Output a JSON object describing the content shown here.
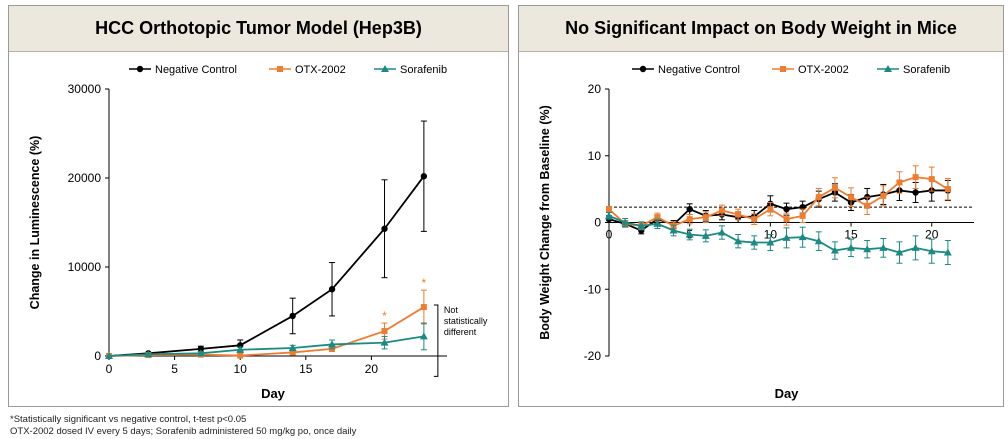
{
  "charts": [
    {
      "title": "HCC Orthotopic Tumor Model (Hep3B)",
      "xlabel": "Day",
      "ylabel": "Change in Luminescence (%)",
      "annotation": {
        "lines": [
          "Not",
          "statistically",
          "different"
        ]
      },
      "star": "*"
    },
    {
      "title": "No Significant Impact on Body Weight in Mice",
      "xlabel": "Day",
      "ylabel": "Body Weight Change from Baseline (%)"
    }
  ],
  "legend": [
    "Negative Control",
    "OTX-2002",
    "Sorafenib"
  ],
  "colors": {
    "negative": "#000000",
    "otx": "#ed7d31",
    "sorafenib": "#1b8a83",
    "header_bg": "#ece8dd"
  },
  "chart_data": [
    {
      "type": "line",
      "title": "HCC Orthotopic Tumor Model (Hep3B)",
      "xlabel": "Day",
      "ylabel": "Change in Luminescence (%)",
      "xlim": [
        0,
        25
      ],
      "ylim": [
        0,
        30000
      ],
      "xticks": [
        0,
        5,
        10,
        15,
        20
      ],
      "yticks": [
        0,
        10000,
        20000,
        30000
      ],
      "legend_position": "top",
      "series": [
        {
          "name": "Negative Control",
          "color": "#000000",
          "marker": "circle",
          "x": [
            0,
            3,
            7,
            10,
            14,
            17,
            21,
            24
          ],
          "values": [
            0,
            300,
            800,
            1200,
            4500,
            7500,
            14300,
            20200
          ],
          "errors": [
            0,
            100,
            300,
            600,
            2000,
            3000,
            5500,
            6200
          ]
        },
        {
          "name": "OTX-2002",
          "color": "#ed7d31",
          "marker": "square",
          "x": [
            0,
            3,
            7,
            10,
            14,
            17,
            21,
            24
          ],
          "values": [
            0,
            100,
            150,
            50,
            400,
            800,
            2800,
            5500
          ],
          "errors": [
            0,
            50,
            80,
            50,
            200,
            300,
            900,
            1900
          ],
          "significant": [
            false,
            false,
            false,
            false,
            false,
            false,
            true,
            true
          ]
        },
        {
          "name": "Sorafenib",
          "color": "#1b8a83",
          "marker": "triangle",
          "x": [
            0,
            3,
            7,
            10,
            14,
            17,
            21,
            24
          ],
          "values": [
            0,
            200,
            300,
            700,
            900,
            1300,
            1500,
            2200
          ],
          "errors": [
            0,
            100,
            200,
            300,
            300,
            500,
            700,
            1500
          ]
        }
      ]
    },
    {
      "type": "line",
      "title": "No Significant Impact on Body Weight in Mice",
      "xlabel": "Day",
      "ylabel": "Body Weight Change from Baseline (%)",
      "xlim": [
        0,
        22
      ],
      "ylim": [
        -20,
        20
      ],
      "xticks": [
        0,
        5,
        10,
        15,
        20
      ],
      "yticks": [
        -20,
        -10,
        0,
        10,
        20
      ],
      "reference_line": 2.3,
      "legend_position": "top",
      "series": [
        {
          "name": "Negative Control",
          "color": "#000000",
          "marker": "circle",
          "x": [
            0,
            1,
            2,
            3,
            4,
            5,
            6,
            7,
            8,
            9,
            10,
            11,
            12,
            13,
            14,
            15,
            16,
            17,
            18,
            19,
            20,
            21
          ],
          "values": [
            0.5,
            -0.2,
            -1.2,
            0.5,
            -0.3,
            2.0,
            1.0,
            1.2,
            0.8,
            0.9,
            2.8,
            2.0,
            2.3,
            3.5,
            4.5,
            3.0,
            3.8,
            4.2,
            4.8,
            4.5,
            4.8,
            4.8
          ],
          "errors": [
            0.5,
            0.5,
            0.5,
            0.6,
            0.6,
            0.8,
            0.8,
            0.8,
            0.8,
            0.9,
            1.2,
            0.9,
            0.9,
            1.2,
            1.3,
            1.2,
            1.3,
            1.5,
            1.5,
            1.5,
            1.6,
            1.5
          ]
        },
        {
          "name": "OTX-2002",
          "color": "#ed7d31",
          "marker": "square",
          "x": [
            0,
            1,
            2,
            3,
            4,
            5,
            6,
            7,
            8,
            9,
            10,
            11,
            12,
            13,
            14,
            15,
            16,
            17,
            18,
            19,
            20,
            21
          ],
          "values": [
            2.0,
            -0.2,
            -0.5,
            0.8,
            -0.5,
            0.5,
            0.8,
            1.8,
            1.2,
            0.5,
            2.0,
            0.5,
            1.0,
            3.8,
            5.2,
            3.8,
            2.5,
            4.0,
            6.0,
            6.8,
            6.5,
            5.0
          ],
          "errors": [
            0.4,
            0.5,
            0.5,
            0.6,
            0.6,
            0.7,
            0.8,
            0.8,
            0.8,
            0.8,
            1.0,
            0.9,
            1.0,
            1.3,
            1.5,
            1.4,
            1.3,
            1.5,
            1.6,
            1.7,
            1.8,
            1.6
          ]
        },
        {
          "name": "Sorafenib",
          "color": "#1b8a83",
          "marker": "triangle",
          "x": [
            0,
            1,
            2,
            3,
            4,
            5,
            6,
            7,
            8,
            9,
            10,
            11,
            12,
            13,
            14,
            15,
            16,
            17,
            18,
            19,
            20,
            21
          ],
          "values": [
            1.0,
            0.0,
            -0.5,
            -0.2,
            -1.2,
            -1.8,
            -2.0,
            -1.5,
            -2.8,
            -3.0,
            -3.0,
            -2.3,
            -2.2,
            -2.8,
            -4.2,
            -3.8,
            -4.0,
            -3.8,
            -4.5,
            -3.8,
            -4.3,
            -4.5
          ],
          "errors": [
            0.5,
            0.6,
            0.6,
            0.7,
            0.8,
            0.8,
            0.9,
            1.0,
            1.0,
            1.0,
            1.2,
            1.5,
            1.5,
            1.4,
            1.3,
            1.3,
            1.3,
            1.4,
            1.6,
            1.8,
            1.8,
            1.8
          ]
        }
      ]
    }
  ],
  "footnotes": [
    "*Statistically significant vs negative control, t-test p<0.05",
    "OTX-2002 dosed IV every 5 days; Sorafenib administered 50 mg/kg po, once daily"
  ]
}
